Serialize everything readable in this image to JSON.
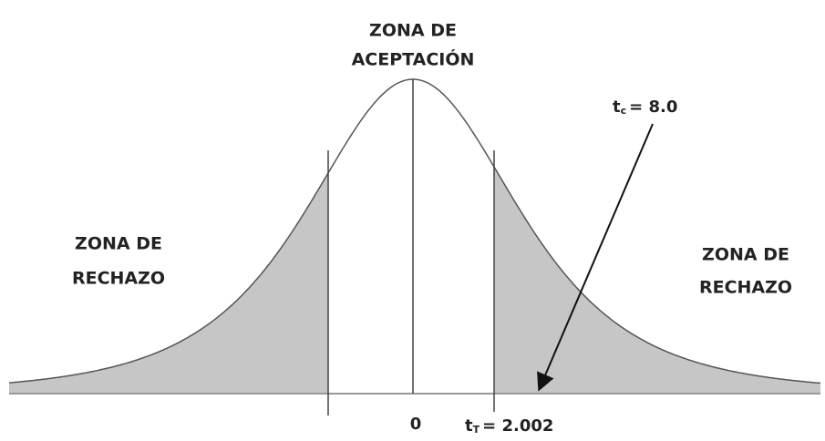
{
  "zones": {
    "acceptance": [
      "ZONA DE",
      "ACEPTACIÓN"
    ],
    "left_rejection": [
      "ZONA DE",
      "RECHAZO"
    ],
    "right_rejection": [
      "ZONA DE",
      "RECHAZO"
    ]
  },
  "labels": {
    "center": "0",
    "critical": {
      "symbol": "t",
      "subscript": "T",
      "value": "= 2.002"
    },
    "calculated": {
      "symbol": "t",
      "subscript": "c",
      "value": "= 8.0"
    }
  }
}
